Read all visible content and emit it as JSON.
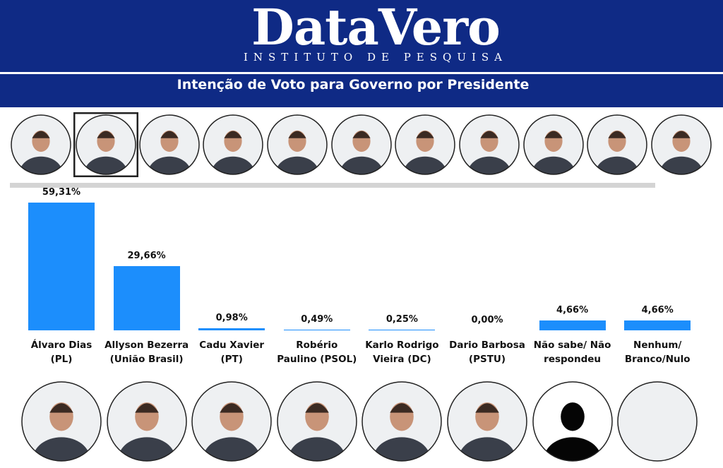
{
  "header": {
    "brand": "DataVero",
    "tagline": "INSTITUTO DE PESQUISA",
    "subtitle": "Intenção de Voto para Governo por Presidente"
  },
  "chart_data": {
    "type": "bar",
    "categories": [
      "Álvaro Dias\n(PL)",
      "Allyson Bezerra\n(União Brasil)",
      "Cadu Xavier\n(PT)",
      "Robério\nPaulino (PSOL)",
      "Karlo Rodrigo\nVieira (DC)",
      "Dario Barbosa\n(PSTU)",
      "Não sabe/ Não\nrespondeu",
      "Nenhum/\nBranco/Nulo"
    ],
    "values": [
      59.31,
      29.66,
      0.98,
      0.49,
      0.25,
      0.0,
      4.66,
      4.66
    ],
    "value_labels": [
      "59,31%",
      "29,66%",
      "0,98%",
      "0,49%",
      "0,25%",
      "0,00%",
      "4,66%",
      "4,66%"
    ],
    "color": "#1c8efc"
  }
}
